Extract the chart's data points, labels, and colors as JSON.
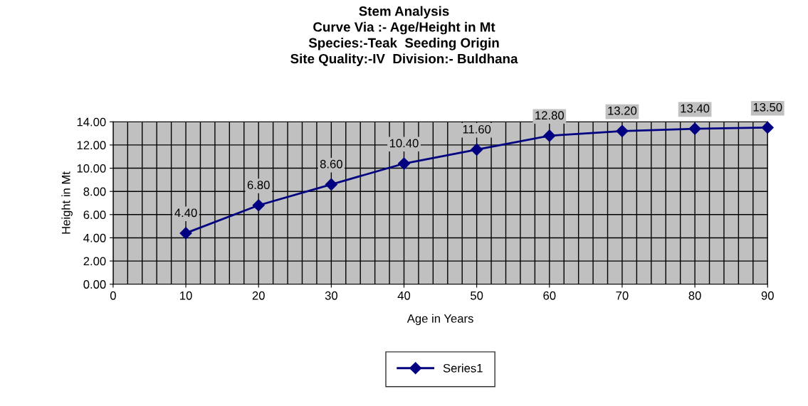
{
  "chart_data": {
    "type": "line",
    "title": "Stem Analysis\nCurve Via :- Age/Height in Mt\nSpecies:-Teak  Seeding Origin\nSite Quality:-IV  Division:- Buldhana",
    "xlabel": "Age in Years",
    "ylabel": "Height in Mt",
    "x": [
      10,
      20,
      30,
      40,
      50,
      60,
      70,
      80,
      90
    ],
    "series": [
      {
        "name": "Series1",
        "color": "#000080",
        "values": [
          4.4,
          6.8,
          8.6,
          10.4,
          11.6,
          12.8,
          13.2,
          13.4,
          13.5
        ],
        "value_labels": [
          "4.40",
          "6.80",
          "8.60",
          "10.40",
          "11.60",
          "12.80",
          "13.20",
          "13.40",
          "13.50"
        ]
      }
    ],
    "xlim": [
      0,
      90
    ],
    "xticks": [
      0,
      10,
      20,
      30,
      40,
      50,
      60,
      70,
      80,
      90
    ],
    "ylim": [
      0,
      14
    ],
    "yticks": [
      {
        "value": 0,
        "label": "0.00"
      },
      {
        "value": 2,
        "label": "2.00"
      },
      {
        "value": 4,
        "label": "4.00"
      },
      {
        "value": 6,
        "label": "6.00"
      },
      {
        "value": 8,
        "label": "8.00"
      },
      {
        "value": 10,
        "label": "10.00"
      },
      {
        "value": 12,
        "label": "12.00"
      },
      {
        "value": 14,
        "label": "14.00"
      }
    ],
    "grid": true,
    "legend": "bottom",
    "marker": "diamond",
    "line_style": "solid"
  }
}
